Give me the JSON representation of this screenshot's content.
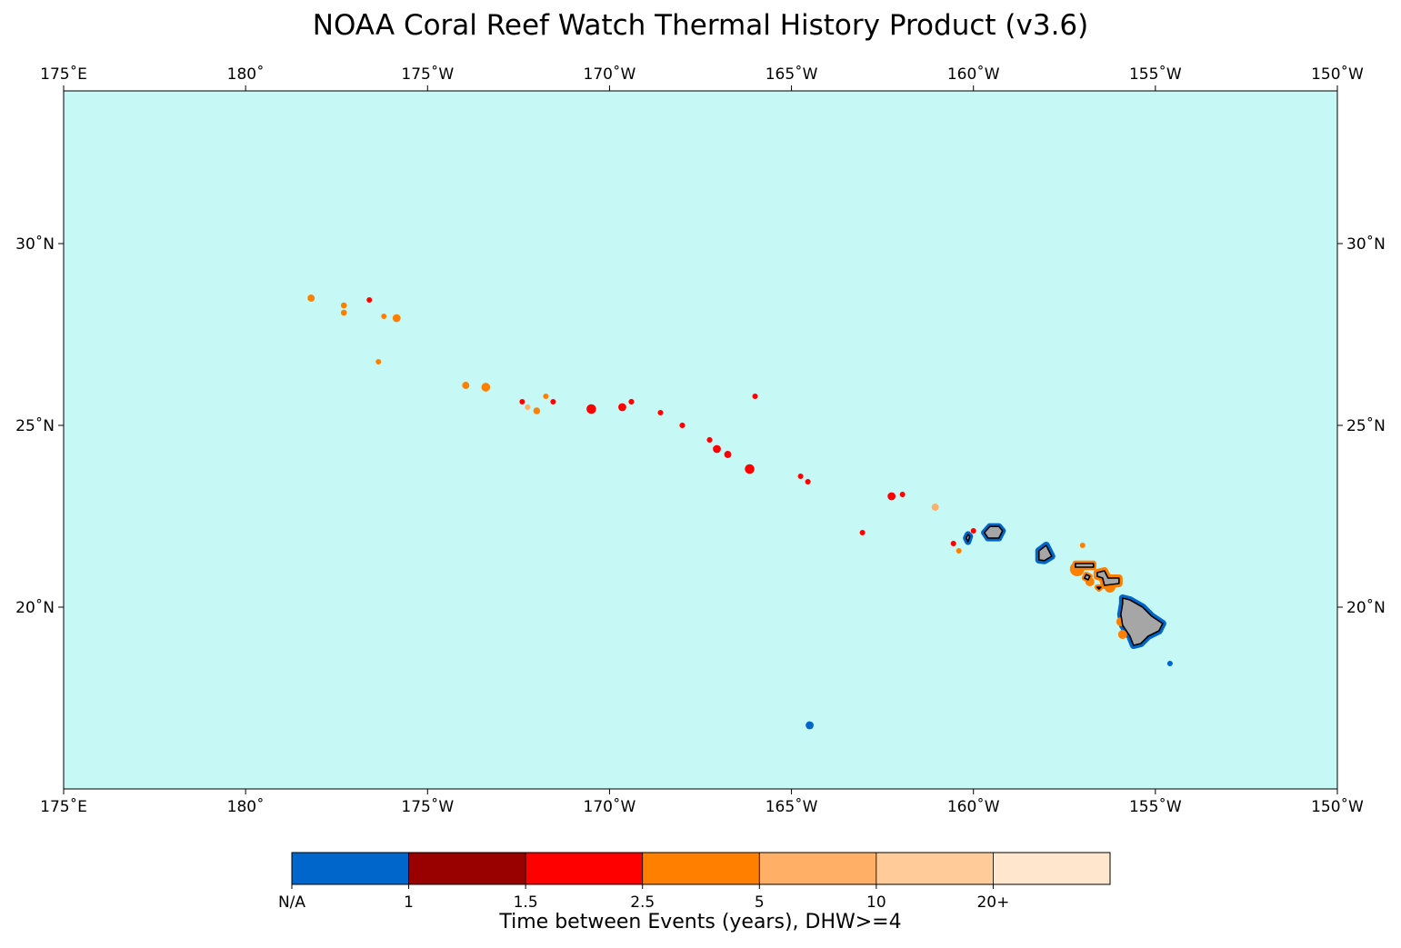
{
  "title": "NOAA Coral Reef Watch Thermal History Product (v3.6)",
  "colors": {
    "ocean": "#c6f9f6",
    "land": "#a6a6a6",
    "na": "#0066cc",
    "c_1_1_5": "#990000",
    "c_1_5_2_5": "#ff0000",
    "c_2_5_5": "#ff8000",
    "c_5_10": "#ffb066",
    "c_10_20": "#ffcc99",
    "c_20_plus": "#ffe6cc"
  },
  "chart_data": {
    "type": "heatmap",
    "projection": "PlateCarree (lon/lat)",
    "extent": {
      "lon": [
        175,
        210
      ],
      "lat": [
        15,
        34.2
      ]
    },
    "x_ticks": [
      {
        "lon": 175,
        "label": "175˚E"
      },
      {
        "lon": 180,
        "label": "180˚"
      },
      {
        "lon": 185,
        "label": "175˚W"
      },
      {
        "lon": 190,
        "label": "170˚W"
      },
      {
        "lon": 195,
        "label": "165˚W"
      },
      {
        "lon": 200,
        "label": "160˚W"
      },
      {
        "lon": 205,
        "label": "155˚W"
      },
      {
        "lon": 210,
        "label": "150˚W"
      }
    ],
    "y_ticks": [
      {
        "lat": 20,
        "label": "20˚N"
      },
      {
        "lat": 25,
        "label": "25˚N"
      },
      {
        "lat": 30,
        "label": "30˚N"
      }
    ],
    "colorbar": {
      "label": "Time between Events (years), DHW>=4",
      "bins": [
        {
          "range": "N/A",
          "color": "#0066cc"
        },
        {
          "range": "1–1.5",
          "color": "#990000"
        },
        {
          "range": "1.5–2.5",
          "color": "#ff0000"
        },
        {
          "range": "2.5–5",
          "color": "#ff8000"
        },
        {
          "range": "5–10",
          "color": "#ffb066"
        },
        {
          "range": "10–20",
          "color": "#ffcc99"
        },
        {
          "range": "20+",
          "color": "#ffe6cc"
        }
      ],
      "tick_labels": [
        "N/A",
        "1",
        "1.5",
        "2.5",
        "5",
        "10",
        "20+"
      ]
    },
    "reef_pixels": [
      {
        "lon": 181.8,
        "lat": 28.5,
        "cat": "2.5-5",
        "size": 0.18
      },
      {
        "lon": 182.7,
        "lat": 28.3,
        "cat": "2.5-5",
        "size": 0.15
      },
      {
        "lon": 182.7,
        "lat": 28.1,
        "cat": "2.5-5",
        "size": 0.15
      },
      {
        "lon": 183.4,
        "lat": 28.45,
        "cat": "1.5-2.5",
        "size": 0.1
      },
      {
        "lon": 183.8,
        "lat": 28.0,
        "cat": "2.5-5",
        "size": 0.12
      },
      {
        "lon": 184.15,
        "lat": 27.95,
        "cat": "2.5-5",
        "size": 0.2
      },
      {
        "lon": 183.65,
        "lat": 26.75,
        "cat": "2.5-5",
        "size": 0.1
      },
      {
        "lon": 186.05,
        "lat": 26.1,
        "cat": "2.5-5",
        "size": 0.18
      },
      {
        "lon": 186.6,
        "lat": 26.05,
        "cat": "2.5-5",
        "size": 0.22
      },
      {
        "lon": 187.6,
        "lat": 25.65,
        "cat": "1.5-2.5",
        "size": 0.1
      },
      {
        "lon": 187.75,
        "lat": 25.5,
        "cat": "5-10",
        "size": 0.14
      },
      {
        "lon": 188.0,
        "lat": 25.4,
        "cat": "2.5-5",
        "size": 0.17
      },
      {
        "lon": 188.25,
        "lat": 25.8,
        "cat": "2.5-5",
        "size": 0.1
      },
      {
        "lon": 188.45,
        "lat": 25.65,
        "cat": "1.5-2.5",
        "size": 0.08
      },
      {
        "lon": 189.5,
        "lat": 25.45,
        "cat": "1.5-2.5",
        "size": 0.24
      },
      {
        "lon": 190.35,
        "lat": 25.5,
        "cat": "1.5-2.5",
        "size": 0.2
      },
      {
        "lon": 190.6,
        "lat": 25.65,
        "cat": "1.5-2.5",
        "size": 0.14
      },
      {
        "lon": 191.4,
        "lat": 25.35,
        "cat": "1.5-2.5",
        "size": 0.1
      },
      {
        "lon": 192.0,
        "lat": 25.0,
        "cat": "1.5-2.5",
        "size": 0.14
      },
      {
        "lon": 192.75,
        "lat": 24.6,
        "cat": "1.5-2.5",
        "size": 0.14
      },
      {
        "lon": 192.95,
        "lat": 24.35,
        "cat": "1.5-2.5",
        "size": 0.2
      },
      {
        "lon": 193.25,
        "lat": 24.2,
        "cat": "1.5-2.5",
        "size": 0.18
      },
      {
        "lon": 193.85,
        "lat": 23.8,
        "cat": "1.5-2.5",
        "size": 0.24
      },
      {
        "lon": 194.0,
        "lat": 25.8,
        "cat": "1.5-2.5",
        "size": 0.1
      },
      {
        "lon": 195.25,
        "lat": 23.6,
        "cat": "1.5-2.5",
        "size": 0.1
      },
      {
        "lon": 195.45,
        "lat": 23.45,
        "cat": "1.5-2.5",
        "size": 0.08
      },
      {
        "lon": 196.95,
        "lat": 22.05,
        "cat": "1.5-2.5",
        "size": 0.1
      },
      {
        "lon": 197.75,
        "lat": 23.05,
        "cat": "1.5-2.5",
        "size": 0.2
      },
      {
        "lon": 198.05,
        "lat": 23.1,
        "cat": "1.5-2.5",
        "size": 0.1
      },
      {
        "lon": 198.95,
        "lat": 22.75,
        "cat": "5-10",
        "size": 0.18
      },
      {
        "lon": 199.45,
        "lat": 21.75,
        "cat": "1.5-2.5",
        "size": 0.1
      },
      {
        "lon": 199.6,
        "lat": 21.55,
        "cat": "2.5-5",
        "size": 0.1
      },
      {
        "lon": 199.85,
        "lat": 22.0,
        "cat": "2.5-5",
        "size": 0.14
      },
      {
        "lon": 200.0,
        "lat": 22.1,
        "cat": "1.5-2.5",
        "size": 0.12
      },
      {
        "lon": 195.5,
        "lat": 16.75,
        "cat": "NA",
        "size": 0.2
      },
      {
        "lon": 205.4,
        "lat": 18.45,
        "cat": "NA",
        "size": 0.1
      },
      {
        "lon": 203.0,
        "lat": 21.7,
        "cat": "2.5-5",
        "size": 0.1
      }
    ],
    "islands": [
      {
        "name": "Niihau",
        "ring_cat": "NA",
        "ring": 0.18,
        "outline": [
          [
            199.8,
            21.9
          ],
          [
            199.85,
            22.0
          ],
          [
            199.9,
            21.95
          ],
          [
            199.85,
            21.8
          ]
        ]
      },
      {
        "name": "Kauai",
        "ring_cat": "NA",
        "ring": 0.18,
        "outline": [
          [
            200.3,
            22.05
          ],
          [
            200.45,
            22.22
          ],
          [
            200.7,
            22.22
          ],
          [
            200.8,
            22.1
          ],
          [
            200.7,
            21.9
          ],
          [
            200.4,
            21.9
          ]
        ]
      },
      {
        "name": "Oahu",
        "ring_cat": "NA",
        "ring": 0.2,
        "outline": [
          [
            201.8,
            21.55
          ],
          [
            202.0,
            21.7
          ],
          [
            202.15,
            21.4
          ],
          [
            201.95,
            21.28
          ],
          [
            201.8,
            21.3
          ]
        ]
      },
      {
        "name": "Molokai",
        "ring_cat": "2.5-5",
        "ring": 0.16,
        "outline": [
          [
            202.8,
            21.2
          ],
          [
            203.3,
            21.2
          ],
          [
            203.3,
            21.1
          ],
          [
            202.8,
            21.1
          ]
        ]
      },
      {
        "name": "Lanai",
        "ring_cat": "2.5-5",
        "ring": 0.14,
        "outline": [
          [
            203.1,
            20.9
          ],
          [
            203.2,
            20.85
          ],
          [
            203.15,
            20.75
          ],
          [
            203.05,
            20.8
          ]
        ]
      },
      {
        "name": "Maui",
        "ring_cat": "2.5-5",
        "ring": 0.2,
        "outline": [
          [
            203.4,
            20.95
          ],
          [
            203.6,
            21.0
          ],
          [
            203.7,
            20.8
          ],
          [
            204.0,
            20.8
          ],
          [
            204.0,
            20.65
          ],
          [
            203.6,
            20.6
          ],
          [
            203.55,
            20.8
          ],
          [
            203.4,
            20.85
          ]
        ]
      },
      {
        "name": "Kahoolawe",
        "ring_cat": "2.5-5",
        "ring": 0.1,
        "outline": [
          [
            203.4,
            20.55
          ],
          [
            203.5,
            20.55
          ],
          [
            203.45,
            20.5
          ]
        ]
      },
      {
        "name": "Hawaii",
        "ring_cat": "NA",
        "ring": 0.2,
        "outline": [
          [
            204.1,
            20.25
          ],
          [
            204.3,
            20.2
          ],
          [
            204.65,
            20.0
          ],
          [
            204.9,
            19.75
          ],
          [
            205.2,
            19.55
          ],
          [
            205.1,
            19.35
          ],
          [
            204.8,
            19.2
          ],
          [
            204.6,
            19.0
          ],
          [
            204.4,
            18.95
          ],
          [
            204.3,
            19.2
          ],
          [
            204.1,
            19.5
          ],
          [
            204.05,
            19.8
          ],
          [
            204.1,
            20.1
          ]
        ]
      }
    ]
  }
}
